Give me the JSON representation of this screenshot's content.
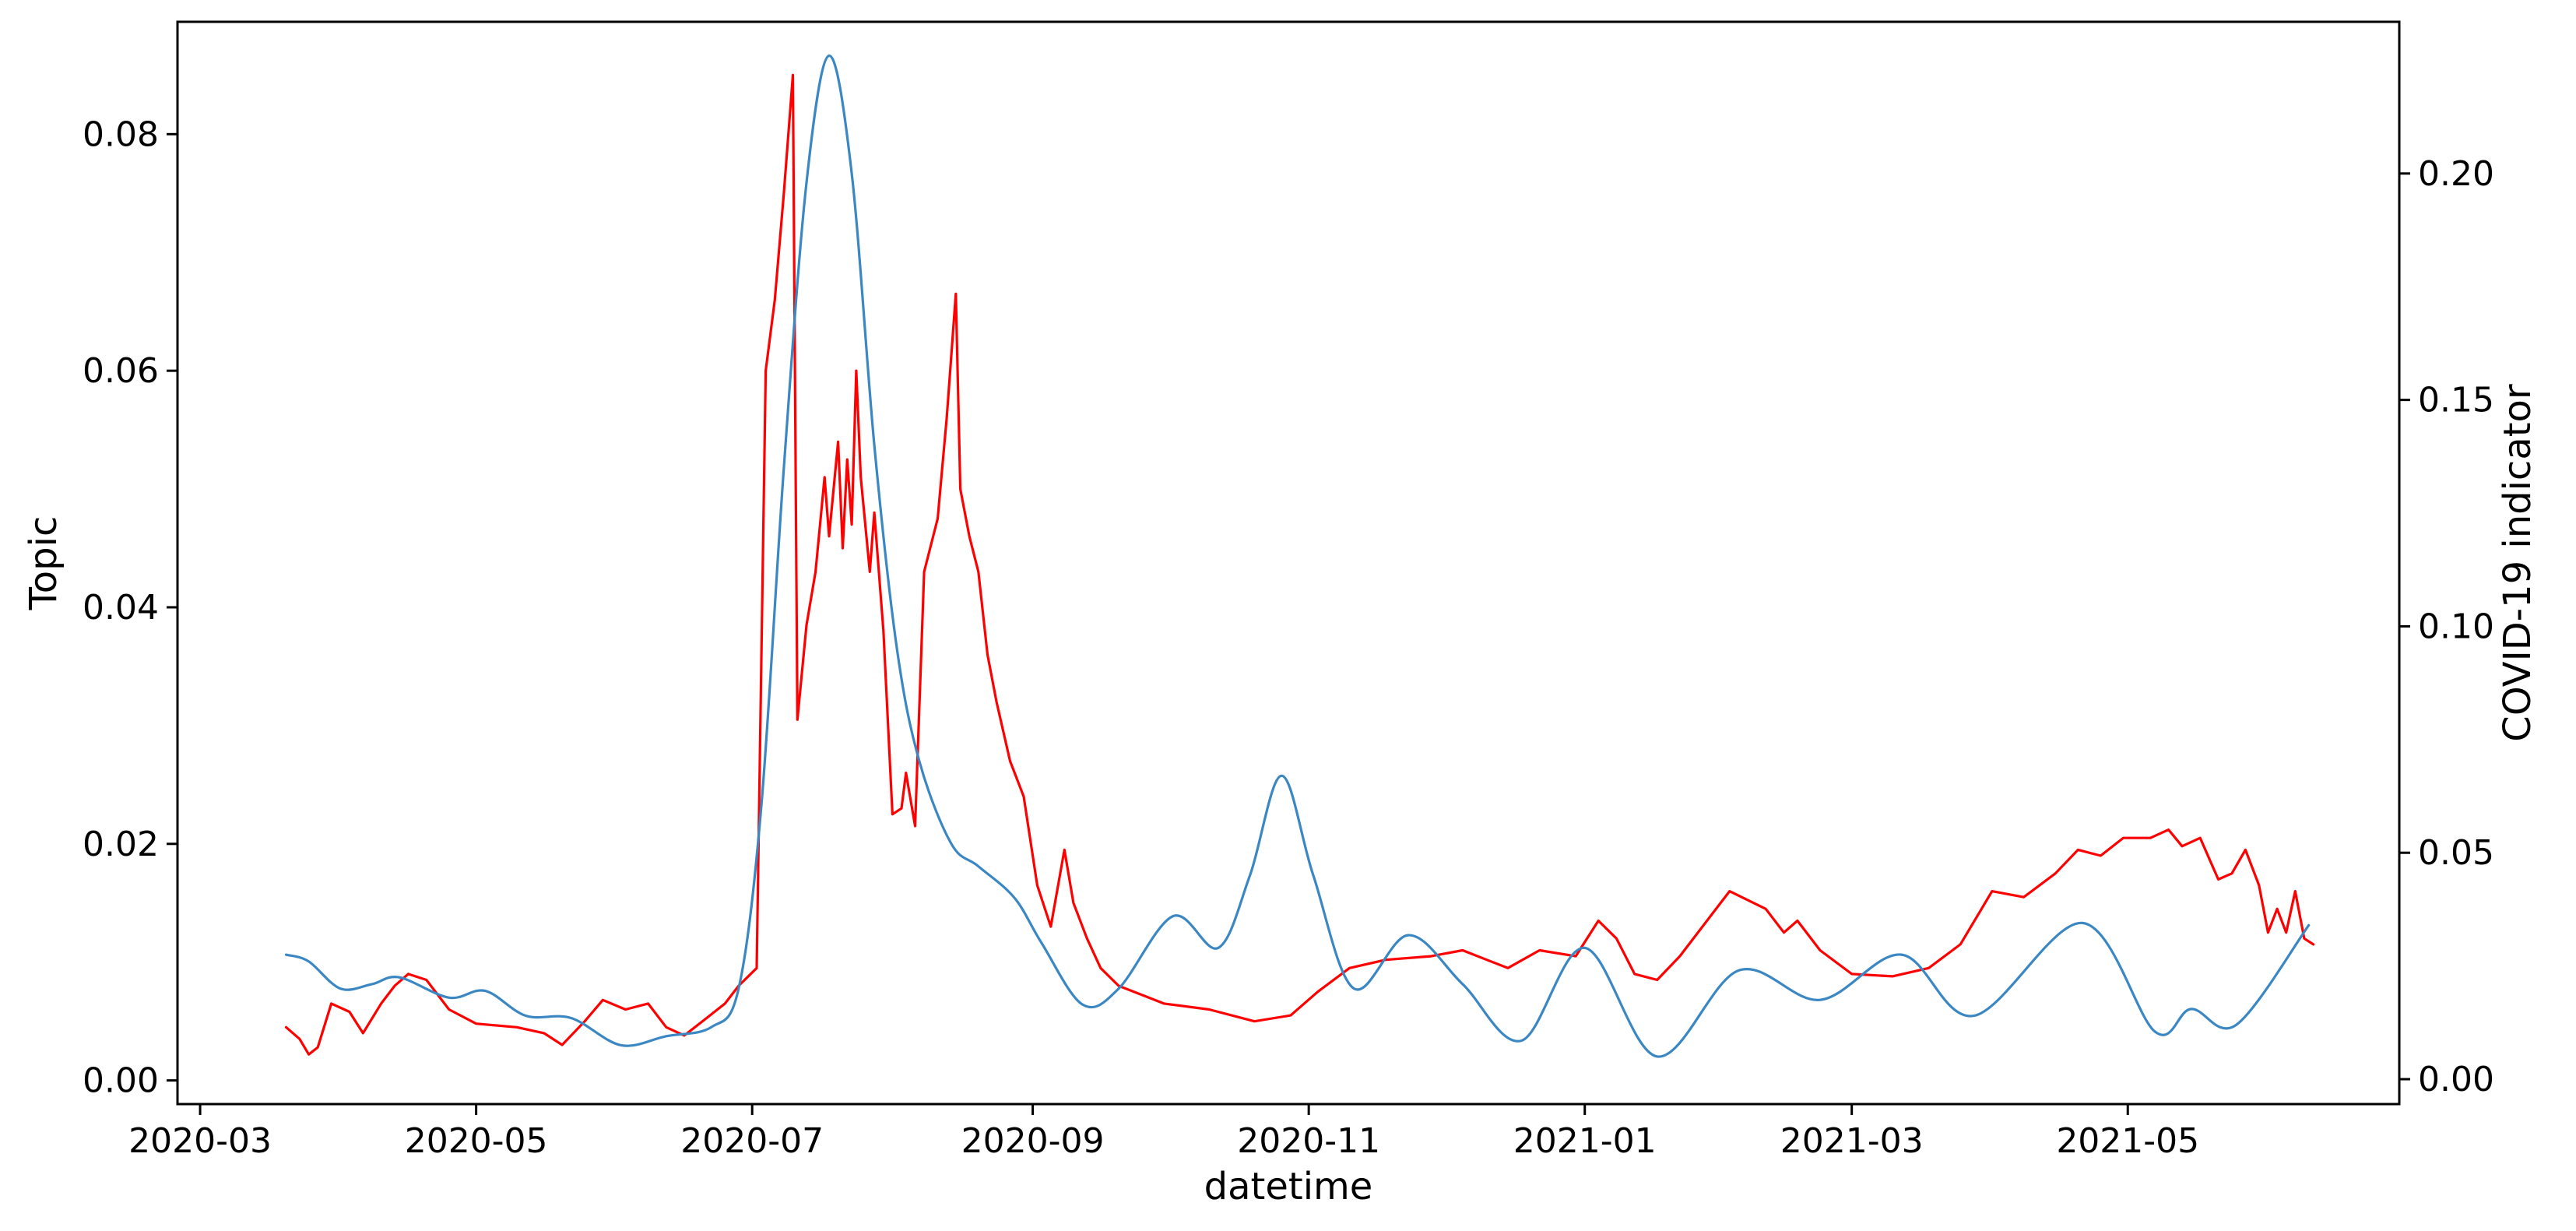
{
  "chart_data": {
    "type": "line",
    "title": "",
    "xlabel": "datetime",
    "ylabel_left": "Topic",
    "ylabel_right": "COVID-19 indicator",
    "xlim": [
      "2020-02-25",
      "2021-06-30"
    ],
    "ylim_left": [
      -0.002,
      0.0895
    ],
    "ylim_right": [
      -0.0055,
      0.2335
    ],
    "x_ticks": [
      "2020-03-01",
      "2020-05-01",
      "2020-07-01",
      "2020-09-01",
      "2020-11-01",
      "2021-01-01",
      "2021-03-01",
      "2021-05-01"
    ],
    "x_tick_labels": [
      "2020-03",
      "2020-05",
      "2020-07",
      "2020-09",
      "2020-11",
      "2021-01",
      "2021-03",
      "2021-05"
    ],
    "y_left_ticks": [
      0.0,
      0.02,
      0.04,
      0.06,
      0.08
    ],
    "y_left_tick_labels": [
      "0.00",
      "0.02",
      "0.04",
      "0.06",
      "0.08"
    ],
    "y_right_ticks": [
      0.0,
      0.05,
      0.1,
      0.15,
      0.2
    ],
    "y_right_tick_labels": [
      "0.00",
      "0.05",
      "0.10",
      "0.15",
      "0.20"
    ],
    "grid": false,
    "legend": "none",
    "series": [
      {
        "axis": "left",
        "color": "#ff0000",
        "points": [
          [
            "2020-03-20",
            0.0045
          ],
          [
            "2020-03-23",
            0.0035
          ],
          [
            "2020-03-25",
            0.0022
          ],
          [
            "2020-03-27",
            0.0028
          ],
          [
            "2020-03-30",
            0.0065
          ],
          [
            "2020-04-03",
            0.0058
          ],
          [
            "2020-04-06",
            0.004
          ],
          [
            "2020-04-10",
            0.0065
          ],
          [
            "2020-04-13",
            0.008
          ],
          [
            "2020-04-16",
            0.009
          ],
          [
            "2020-04-20",
            0.0085
          ],
          [
            "2020-04-25",
            0.006
          ],
          [
            "2020-05-01",
            0.0048
          ],
          [
            "2020-05-10",
            0.0045
          ],
          [
            "2020-05-16",
            0.004
          ],
          [
            "2020-05-20",
            0.003
          ],
          [
            "2020-05-25",
            0.005
          ],
          [
            "2020-05-29",
            0.0068
          ],
          [
            "2020-06-03",
            0.006
          ],
          [
            "2020-06-08",
            0.0065
          ],
          [
            "2020-06-12",
            0.0045
          ],
          [
            "2020-06-16",
            0.0038
          ],
          [
            "2020-06-20",
            0.005
          ],
          [
            "2020-06-25",
            0.0065
          ],
          [
            "2020-06-28",
            0.008
          ],
          [
            "2020-07-02",
            0.0095
          ],
          [
            "2020-07-04",
            0.06
          ],
          [
            "2020-07-06",
            0.066
          ],
          [
            "2020-07-08",
            0.075
          ],
          [
            "2020-07-10",
            0.085
          ],
          [
            "2020-07-11",
            0.0305
          ],
          [
            "2020-07-13",
            0.0385
          ],
          [
            "2020-07-15",
            0.043
          ],
          [
            "2020-07-17",
            0.051
          ],
          [
            "2020-07-18",
            0.046
          ],
          [
            "2020-07-20",
            0.054
          ],
          [
            "2020-07-21",
            0.045
          ],
          [
            "2020-07-22",
            0.0525
          ],
          [
            "2020-07-23",
            0.047
          ],
          [
            "2020-07-24",
            0.06
          ],
          [
            "2020-07-25",
            0.051
          ],
          [
            "2020-07-27",
            0.043
          ],
          [
            "2020-07-28",
            0.048
          ],
          [
            "2020-07-30",
            0.038
          ],
          [
            "2020-08-01",
            0.0225
          ],
          [
            "2020-08-03",
            0.023
          ],
          [
            "2020-08-04",
            0.026
          ],
          [
            "2020-08-06",
            0.0215
          ],
          [
            "2020-08-08",
            0.043
          ],
          [
            "2020-08-11",
            0.0475
          ],
          [
            "2020-08-13",
            0.056
          ],
          [
            "2020-08-15",
            0.0665
          ],
          [
            "2020-08-16",
            0.05
          ],
          [
            "2020-08-18",
            0.046
          ],
          [
            "2020-08-20",
            0.043
          ],
          [
            "2020-08-22",
            0.036
          ],
          [
            "2020-08-24",
            0.032
          ],
          [
            "2020-08-27",
            0.027
          ],
          [
            "2020-08-30",
            0.024
          ],
          [
            "2020-09-02",
            0.0165
          ],
          [
            "2020-09-05",
            0.013
          ],
          [
            "2020-09-08",
            0.0195
          ],
          [
            "2020-09-10",
            0.015
          ],
          [
            "2020-09-13",
            0.012
          ],
          [
            "2020-09-16",
            0.0095
          ],
          [
            "2020-09-20",
            0.008
          ],
          [
            "2020-09-30",
            0.0065
          ],
          [
            "2020-10-10",
            0.006
          ],
          [
            "2020-10-20",
            0.005
          ],
          [
            "2020-10-28",
            0.0055
          ],
          [
            "2020-11-03",
            0.0075
          ],
          [
            "2020-11-10",
            0.0095
          ],
          [
            "2020-11-18",
            0.0102
          ],
          [
            "2020-11-28",
            0.0105
          ],
          [
            "2020-12-05",
            0.011
          ],
          [
            "2020-12-15",
            0.0095
          ],
          [
            "2020-12-22",
            0.011
          ],
          [
            "2020-12-30",
            0.0105
          ],
          [
            "2021-01-04",
            0.0135
          ],
          [
            "2021-01-08",
            0.012
          ],
          [
            "2021-01-12",
            0.009
          ],
          [
            "2021-01-17",
            0.0085
          ],
          [
            "2021-01-22",
            0.0105
          ],
          [
            "2021-01-28",
            0.0135
          ],
          [
            "2021-02-02",
            0.016
          ],
          [
            "2021-02-10",
            0.0145
          ],
          [
            "2021-02-14",
            0.0125
          ],
          [
            "2021-02-17",
            0.0135
          ],
          [
            "2021-02-22",
            0.011
          ],
          [
            "2021-03-01",
            0.009
          ],
          [
            "2021-03-10",
            0.0088
          ],
          [
            "2021-03-18",
            0.0095
          ],
          [
            "2021-03-25",
            0.0115
          ],
          [
            "2021-04-01",
            0.016
          ],
          [
            "2021-04-08",
            0.0155
          ],
          [
            "2021-04-15",
            0.0175
          ],
          [
            "2021-04-20",
            0.0195
          ],
          [
            "2021-04-25",
            0.019
          ],
          [
            "2021-04-30",
            0.0205
          ],
          [
            "2021-05-06",
            0.0205
          ],
          [
            "2021-05-10",
            0.0212
          ],
          [
            "2021-05-13",
            0.0198
          ],
          [
            "2021-05-17",
            0.0205
          ],
          [
            "2021-05-21",
            0.017
          ],
          [
            "2021-05-24",
            0.0175
          ],
          [
            "2021-05-27",
            0.0195
          ],
          [
            "2021-05-30",
            0.0165
          ],
          [
            "2021-06-01",
            0.0125
          ],
          [
            "2021-06-03",
            0.0145
          ],
          [
            "2021-06-05",
            0.0125
          ],
          [
            "2021-06-07",
            0.016
          ],
          [
            "2021-06-09",
            0.012
          ],
          [
            "2021-06-11",
            0.0115
          ]
        ]
      },
      {
        "axis": "right",
        "color": "#3a87c3",
        "points": [
          [
            "2020-03-20",
            0.0275
          ],
          [
            "2020-03-25",
            0.026
          ],
          [
            "2020-04-01",
            0.02
          ],
          [
            "2020-04-08",
            0.021
          ],
          [
            "2020-04-14",
            0.0225
          ],
          [
            "2020-04-25",
            0.018
          ],
          [
            "2020-05-03",
            0.0195
          ],
          [
            "2020-05-12",
            0.014
          ],
          [
            "2020-05-22",
            0.0135
          ],
          [
            "2020-06-02",
            0.0075
          ],
          [
            "2020-06-12",
            0.0095
          ],
          [
            "2020-06-22",
            0.0115
          ],
          [
            "2020-06-28",
            0.02
          ],
          [
            "2020-07-03",
            0.06
          ],
          [
            "2020-07-08",
            0.135
          ],
          [
            "2020-07-13",
            0.198
          ],
          [
            "2020-07-18",
            0.226
          ],
          [
            "2020-07-23",
            0.2
          ],
          [
            "2020-07-28",
            0.14
          ],
          [
            "2020-08-02",
            0.095
          ],
          [
            "2020-08-07",
            0.07
          ],
          [
            "2020-08-14",
            0.052
          ],
          [
            "2020-08-20",
            0.047
          ],
          [
            "2020-08-28",
            0.04
          ],
          [
            "2020-09-03",
            0.03
          ],
          [
            "2020-09-12",
            0.0165
          ],
          [
            "2020-09-20",
            0.02
          ],
          [
            "2020-10-02",
            0.036
          ],
          [
            "2020-10-12",
            0.029
          ],
          [
            "2020-10-19",
            0.045
          ],
          [
            "2020-10-26",
            0.067
          ],
          [
            "2020-11-02",
            0.045
          ],
          [
            "2020-11-11",
            0.02
          ],
          [
            "2020-11-23",
            0.0318
          ],
          [
            "2020-12-05",
            0.021
          ],
          [
            "2020-12-18",
            0.0085
          ],
          [
            "2021-01-01",
            0.029
          ],
          [
            "2021-01-17",
            0.005
          ],
          [
            "2021-02-04",
            0.024
          ],
          [
            "2021-02-22",
            0.0175
          ],
          [
            "2021-03-12",
            0.0275
          ],
          [
            "2021-03-28",
            0.014
          ],
          [
            "2021-04-21",
            0.0345
          ],
          [
            "2021-05-07",
            0.0105
          ],
          [
            "2021-05-15",
            0.0155
          ],
          [
            "2021-05-25",
            0.012
          ],
          [
            "2021-06-10",
            0.034
          ]
        ]
      }
    ]
  }
}
